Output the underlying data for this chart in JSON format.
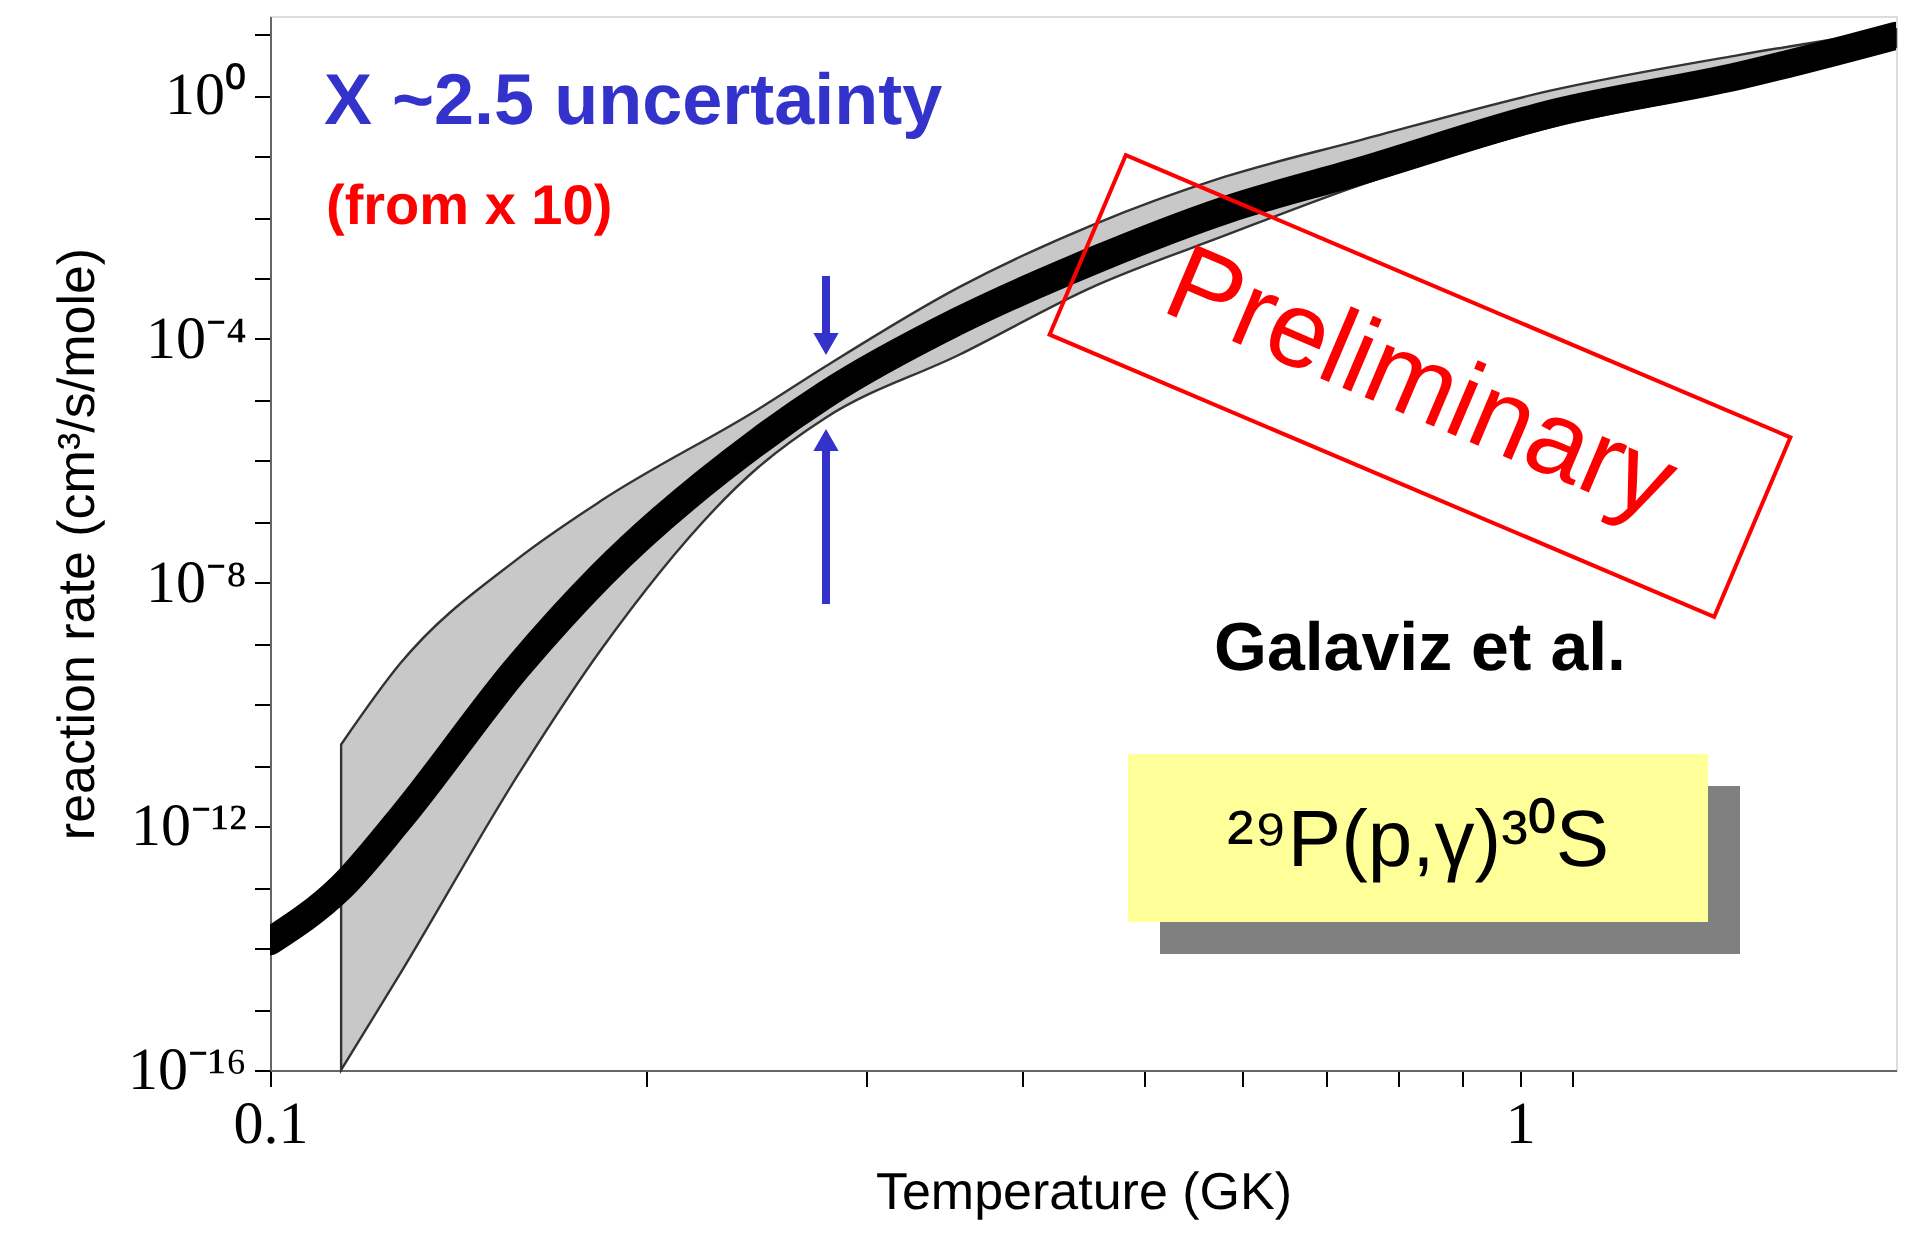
{
  "chart_data": {
    "type": "line",
    "xlabel": "Temperature (GK)",
    "ylabel": "reaction rate (cm³/s/mole)",
    "x": [
      0.1,
      0.114,
      0.127,
      0.158,
      0.184,
      0.246,
      0.278,
      0.356,
      0.455,
      0.581,
      0.743,
      1.06,
      1.5,
      2
    ],
    "series": [
      {
        "color": "#000000",
        "values": [
          1.3e-14,
          1e-13,
          1.3e-12,
          4.2e-10,
          1.3e-08,
          2.1e-06,
          1.2e-05,
          0.0002,
          0.0019,
          0.013,
          0.056,
          0.5,
          2.1,
          9.5
        ],
        "lower": [
          null,
          1e-16,
          3.7e-15,
          7.1e-12,
          7.9e-10,
          7.9e-07,
          5e-06,
          5.5e-05,
          0.00071,
          0.005,
          0.033,
          0.3,
          1.35,
          6.2
        ],
        "upper": [
          null,
          2.2e-11,
          4.6e-10,
          2.5e-08,
          2.2e-07,
          7.1e-06,
          3.5e-05,
          0.00071,
          0.0074,
          0.046,
          0.18,
          1.2,
          4.6,
          12
        ]
      }
    ],
    "log": "xy",
    "xlim": [
      0.1,
      2
    ],
    "ylim": [
      1e-16,
      20
    ],
    "xticks": [
      0.1,
      {
        "value": 0.2,
        "label": null
      },
      {
        "value": 0.3,
        "label": null
      },
      {
        "value": 0.4,
        "label": null
      },
      {
        "value": 0.5,
        "label": null
      },
      {
        "value": 0.6,
        "label": null
      },
      {
        "value": 0.7,
        "label": null
      },
      {
        "value": 0.8,
        "label": null
      },
      {
        "value": 0.9,
        "label": null
      },
      1,
      {
        "value": 1.1,
        "label": null
      }
    ],
    "yticks": [
      {
        "value": 1e-16,
        "label": "10⁻¹⁶"
      },
      {
        "value": 1e-15,
        "label": null
      },
      {
        "value": 1e-14,
        "label": null
      },
      {
        "value": 1e-13,
        "label": null
      },
      {
        "value": 1e-12,
        "label": "10⁻¹²"
      },
      {
        "value": 1e-11,
        "label": null
      },
      {
        "value": 1e-10,
        "label": null
      },
      {
        "value": 1e-09,
        "label": null
      },
      {
        "value": 1e-08,
        "label": "10⁻⁸"
      },
      {
        "value": 1e-07,
        "label": null
      },
      {
        "value": 1e-06,
        "label": null
      },
      {
        "value": 1e-05,
        "label": null
      },
      {
        "value": 0.0001,
        "label": "10⁻⁴"
      },
      {
        "value": 0.001,
        "label": null
      },
      {
        "value": 0.01,
        "label": null
      },
      {
        "value": 0.1,
        "label": null
      },
      {
        "value": 1,
        "label": "10⁰"
      },
      {
        "value": 10,
        "label": null
      }
    ],
    "grid": false,
    "marker": "none",
    "line_style": "solid",
    "annotations": [
      "X ~2.5 uncertainty",
      "(from x 10)",
      "Preliminary",
      "Galaviz et al.",
      "²⁹P(p,γ)³⁰S"
    ]
  }
}
